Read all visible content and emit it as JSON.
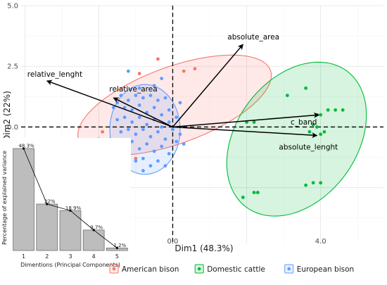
{
  "chart_data": [
    {
      "type": "scatter",
      "subtype": "pca-biplot",
      "title": "",
      "xlabel": "Dim1 (48.3%)",
      "ylabel": "Dim2 (22%)",
      "xlim": [
        -4.1,
        5.7
      ],
      "ylim": [
        -4.8,
        5.0
      ],
      "x_ticks": [
        {
          "value": 0,
          "label": "0.0"
        },
        {
          "value": 4,
          "label": "4.0"
        }
      ],
      "y_ticks": [
        {
          "value": 0,
          "label": "0.0"
        },
        {
          "value": 2.5,
          "label": "2.5"
        },
        {
          "value": 5,
          "label": "5.0"
        }
      ],
      "grid": true,
      "reference_lines": "dashed at x=0 and y=0",
      "legend_position": "bottom",
      "series": [
        {
          "name": "American bison",
          "color": "#F8766D",
          "marker": "circle",
          "points": [
            [
              -0.4,
              2.8
            ],
            [
              -0.9,
              2.2
            ],
            [
              0.3,
              2.3
            ],
            [
              0.6,
              2.4
            ],
            [
              -1.9,
              -0.2
            ],
            [
              -1.9,
              -0.9
            ],
            [
              -1.0,
              -1.3
            ],
            [
              -2.0,
              -0.5
            ]
          ],
          "ellipse": {
            "center": [
              0.05,
              0.9
            ],
            "semi_axes": [
              3.0,
              1.45
            ],
            "angle_deg": 34
          }
        },
        {
          "name": "Domestic cattle",
          "color": "#00BA38",
          "marker": "circle",
          "points": [
            [
              4.6,
              0.7
            ],
            [
              4.4,
              0.7
            ],
            [
              4.2,
              0.7
            ],
            [
              4.0,
              0.5
            ],
            [
              3.9,
              0.5
            ],
            [
              3.6,
              1.6
            ],
            [
              3.9,
              0.0
            ],
            [
              3.8,
              0.1
            ],
            [
              4.1,
              -0.2
            ],
            [
              4.0,
              -0.3
            ],
            [
              3.7,
              -0.2
            ],
            [
              3.1,
              1.3
            ],
            [
              2.2,
              0.2
            ],
            [
              2.0,
              0.2
            ],
            [
              4.0,
              -2.3
            ],
            [
              3.8,
              -2.3
            ],
            [
              3.6,
              -2.4
            ],
            [
              2.3,
              -2.7
            ],
            [
              2.2,
              -2.7
            ],
            [
              1.9,
              -2.9
            ]
          ],
          "ellipse": {
            "center": [
              3.35,
              -0.5
            ],
            "semi_axes": [
              3.25,
              1.75
            ],
            "angle_deg": 75
          }
        },
        {
          "name": "European bison",
          "color": "#619CFF",
          "marker": "circle",
          "points": [
            [
              -1.4,
              1.3
            ],
            [
              -1.2,
              1.1
            ],
            [
              -1.0,
              1.3
            ],
            [
              -0.8,
              1.2
            ],
            [
              -0.6,
              1.3
            ],
            [
              -0.4,
              1.1
            ],
            [
              -0.2,
              1.2
            ],
            [
              -1.3,
              0.8
            ],
            [
              -1.1,
              0.7
            ],
            [
              -0.9,
              0.9
            ],
            [
              -0.7,
              0.6
            ],
            [
              -0.5,
              0.8
            ],
            [
              -0.3,
              0.5
            ],
            [
              -0.1,
              0.7
            ],
            [
              -1.5,
              0.3
            ],
            [
              -1.3,
              0.4
            ],
            [
              -1.1,
              0.2
            ],
            [
              -0.9,
              0.4
            ],
            [
              -0.7,
              0.1
            ],
            [
              -0.5,
              0.3
            ],
            [
              -0.3,
              0.0
            ],
            [
              -0.1,
              0.2
            ],
            [
              0.1,
              0.4
            ],
            [
              -1.4,
              -0.2
            ],
            [
              -1.2,
              -0.1
            ],
            [
              -1.0,
              -0.3
            ],
            [
              -0.8,
              -0.1
            ],
            [
              -0.6,
              -0.4
            ],
            [
              -0.4,
              -0.2
            ],
            [
              -0.2,
              -0.5
            ],
            [
              0.0,
              -0.1
            ],
            [
              0.2,
              -0.3
            ],
            [
              -1.3,
              -0.8
            ],
            [
              -1.1,
              -0.6
            ],
            [
              -0.9,
              -0.9
            ],
            [
              -0.7,
              -0.7
            ],
            [
              -0.5,
              -1.0
            ],
            [
              -0.3,
              -0.8
            ],
            [
              -0.1,
              -1.1
            ],
            [
              0.1,
              -0.6
            ],
            [
              -1.0,
              -1.4
            ],
            [
              -0.8,
              -1.3
            ],
            [
              -0.6,
              -1.6
            ],
            [
              -0.4,
              -1.4
            ],
            [
              -0.2,
              -1.6
            ],
            [
              -1.6,
              0.8
            ],
            [
              -1.7,
              -0.5
            ],
            [
              0.3,
              -0.7
            ],
            [
              -0.9,
              1.6
            ],
            [
              -0.5,
              1.7
            ],
            [
              -0.3,
              2.0
            ],
            [
              -1.2,
              2.3
            ],
            [
              0.2,
              1.0
            ],
            [
              -0.8,
              -1.8
            ],
            [
              -1.5,
              1.0
            ],
            [
              -1.2,
              -1.2
            ]
          ],
          "ellipse": {
            "center": [
              -0.75,
              -0.1
            ],
            "semi_axes": [
              0.95,
              1.85
            ],
            "angle_deg": 0
          }
        }
      ],
      "variables": [
        {
          "name": "absolute_area",
          "x": 1.9,
          "y": 3.4
        },
        {
          "name": "relative_lenght",
          "x": -3.4,
          "y": 1.9
        },
        {
          "name": "relative_area",
          "x": -1.6,
          "y": 1.2
        },
        {
          "name": "c_band",
          "x": 3.95,
          "y": 0.5
        },
        {
          "name": "absolute_lenght",
          "x": 3.9,
          "y": -0.35
        }
      ]
    },
    {
      "type": "bar",
      "title": "",
      "xlabel": "Dimentions (Principal Components)",
      "ylabel": "Percentage of explained variance",
      "categories": [
        "1",
        "2",
        "3",
        "4",
        "5"
      ],
      "values": [
        48.3,
        22,
        18.9,
        9.7,
        1.2
      ],
      "value_labels": [
        "48.3%",
        "22%",
        "18.9%",
        "9.7%",
        "1.2%"
      ],
      "ylim": [
        0,
        50
      ],
      "overlay": "line with points connecting bar tops",
      "bar_color": "#bdbdbd",
      "position": "bottom-left inset"
    }
  ]
}
